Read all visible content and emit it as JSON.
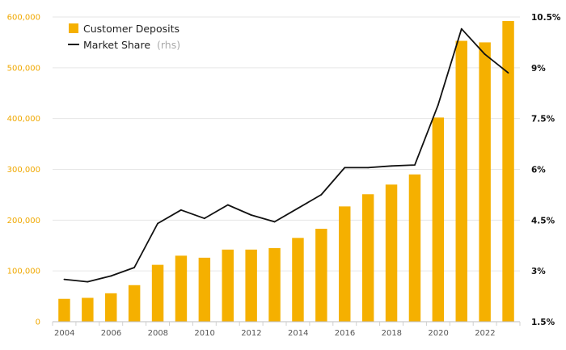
{
  "chart_data": {
    "type": "bar",
    "x": [
      2004,
      2005,
      2006,
      2007,
      2008,
      2009,
      2010,
      2011,
      2012,
      2013,
      2014,
      2015,
      2016,
      2017,
      2018,
      2019,
      2020,
      2021,
      2022,
      2023
    ],
    "x_tick_labels": [
      "2004",
      "2006",
      "2008",
      "2010",
      "2012",
      "2014",
      "2016",
      "2018",
      "2020",
      "2022"
    ],
    "series": [
      {
        "name": "Customer Deposits",
        "type": "bar",
        "axis": "left",
        "color": "#f5b000",
        "values": [
          45000,
          47000,
          56000,
          72000,
          112000,
          130000,
          126000,
          142000,
          142000,
          145000,
          165000,
          183000,
          227000,
          251000,
          270000,
          290000,
          402000,
          553000,
          550000,
          592000
        ]
      },
      {
        "name": "Market Share",
        "name_note": "(rhs)",
        "type": "line",
        "axis": "right",
        "color": "#111111",
        "values": [
          2.75,
          2.68,
          2.85,
          3.1,
          4.4,
          4.8,
          4.55,
          4.95,
          4.65,
          4.45,
          4.85,
          5.25,
          6.05,
          6.05,
          6.1,
          6.13,
          7.9,
          10.15,
          9.4,
          8.85
        ]
      }
    ],
    "y_left": {
      "ylim": [
        0,
        600000
      ],
      "ticks": [
        0,
        100000,
        200000,
        300000,
        400000,
        500000,
        600000
      ],
      "tick_labels": [
        "0",
        "100,000",
        "200,000",
        "300,000",
        "400,000",
        "500,000",
        "600,000"
      ],
      "label_color": "#f0a800"
    },
    "y_right": {
      "ylim": [
        1.5,
        10.5
      ],
      "ticks": [
        1.5,
        3,
        4.5,
        6,
        7.5,
        9,
        10.5
      ],
      "tick_labels": [
        "1.5%",
        "3%",
        "4.5%",
        "6%",
        "7.5%",
        "9%",
        "10.5%"
      ],
      "label_color": "#111111"
    },
    "grid": true,
    "legend": "top-left"
  }
}
